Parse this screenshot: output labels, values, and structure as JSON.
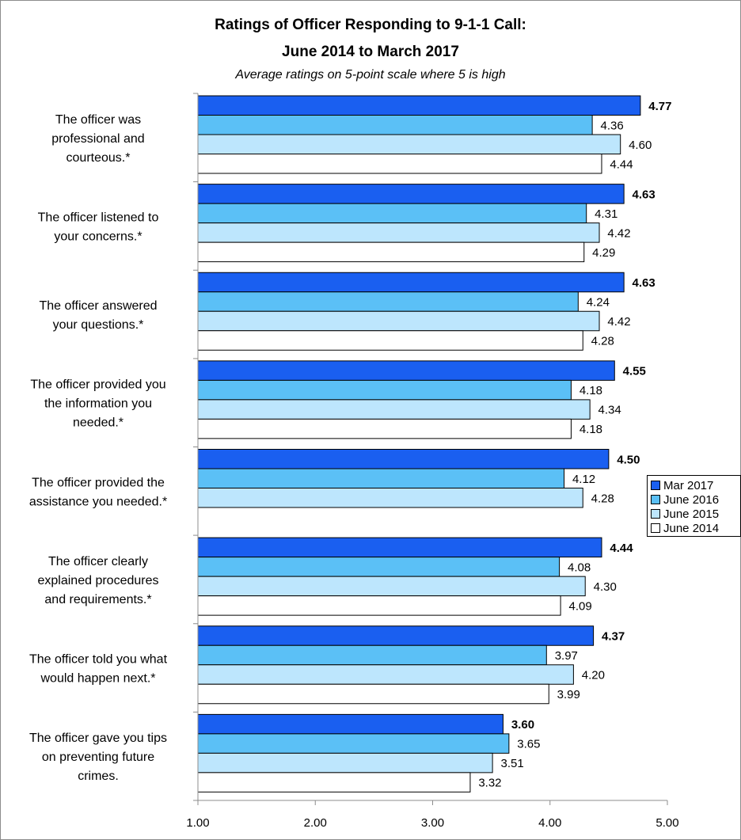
{
  "chart_data": {
    "type": "bar",
    "orientation": "horizontal",
    "title": "Ratings of Officer Responding to 9-1-1 Call:",
    "title_line2": "June 2014 to March 2017",
    "subtitle": "Average ratings on 5-point scale where 5 is high",
    "categories": [
      "The officer was professional and courteous.*",
      "The officer listened to your concerns.*",
      "The officer answered your questions.*",
      "The officer provided you the information you needed.*",
      "The officer provided the assistance you needed.*",
      "The officer clearly explained procedures and requirements.*",
      "The officer told you what would happen next.*",
      "The officer gave you tips on preventing future crimes."
    ],
    "category_lines": [
      [
        "The officer was",
        "professional and",
        "courteous.*"
      ],
      [
        "The officer listened to",
        "your concerns.*"
      ],
      [
        "The officer answered",
        "your questions.*"
      ],
      [
        "The officer provided you",
        "the information you",
        "needed.*"
      ],
      [
        "The officer provided the",
        "assistance you needed.*"
      ],
      [
        "The officer clearly",
        "explained procedures",
        "and requirements.*"
      ],
      [
        "The officer told you what",
        "would happen next.*"
      ],
      [
        "The officer gave you tips",
        "on preventing future",
        "crimes."
      ]
    ],
    "series": [
      {
        "name": "Mar 2017",
        "color": "#1a5ff0",
        "bold_labels": true,
        "values": [
          4.77,
          4.63,
          4.63,
          4.55,
          4.5,
          4.44,
          4.37,
          3.6
        ]
      },
      {
        "name": "June 2016",
        "color": "#5bc0f6",
        "bold_labels": false,
        "values": [
          4.36,
          4.31,
          4.24,
          4.18,
          4.12,
          4.08,
          3.97,
          3.65
        ]
      },
      {
        "name": "June 2015",
        "color": "#bde6fd",
        "bold_labels": false,
        "values": [
          4.6,
          4.42,
          4.42,
          4.34,
          4.28,
          4.3,
          4.2,
          3.51
        ]
      },
      {
        "name": "June 2014",
        "color": "#ffffff",
        "bold_labels": false,
        "values": [
          4.44,
          4.29,
          4.28,
          4.18,
          null,
          4.09,
          3.99,
          3.32
        ]
      }
    ],
    "value_labels": [
      [
        "4.77",
        "4.36",
        "4.60",
        "4.44"
      ],
      [
        "4.63",
        "4.31",
        "4.42",
        "4.29"
      ],
      [
        "4.63",
        "4.24",
        "4.42",
        "4.28"
      ],
      [
        "4.55",
        "4.18",
        "4.34",
        "4.18"
      ],
      [
        "4.50",
        "4.12",
        "4.28",
        null
      ],
      [
        "4.44",
        "4.08",
        "4.30",
        "4.09"
      ],
      [
        "4.37",
        "3.97",
        "4.20",
        "3.99"
      ],
      [
        "3.60",
        "3.65",
        "3.51",
        "3.32"
      ]
    ],
    "xlim": [
      1,
      5
    ],
    "xticks": [
      "1.00",
      "2.00",
      "3.00",
      "4.00",
      "5.00"
    ],
    "grid": false,
    "legend_position": "right"
  }
}
